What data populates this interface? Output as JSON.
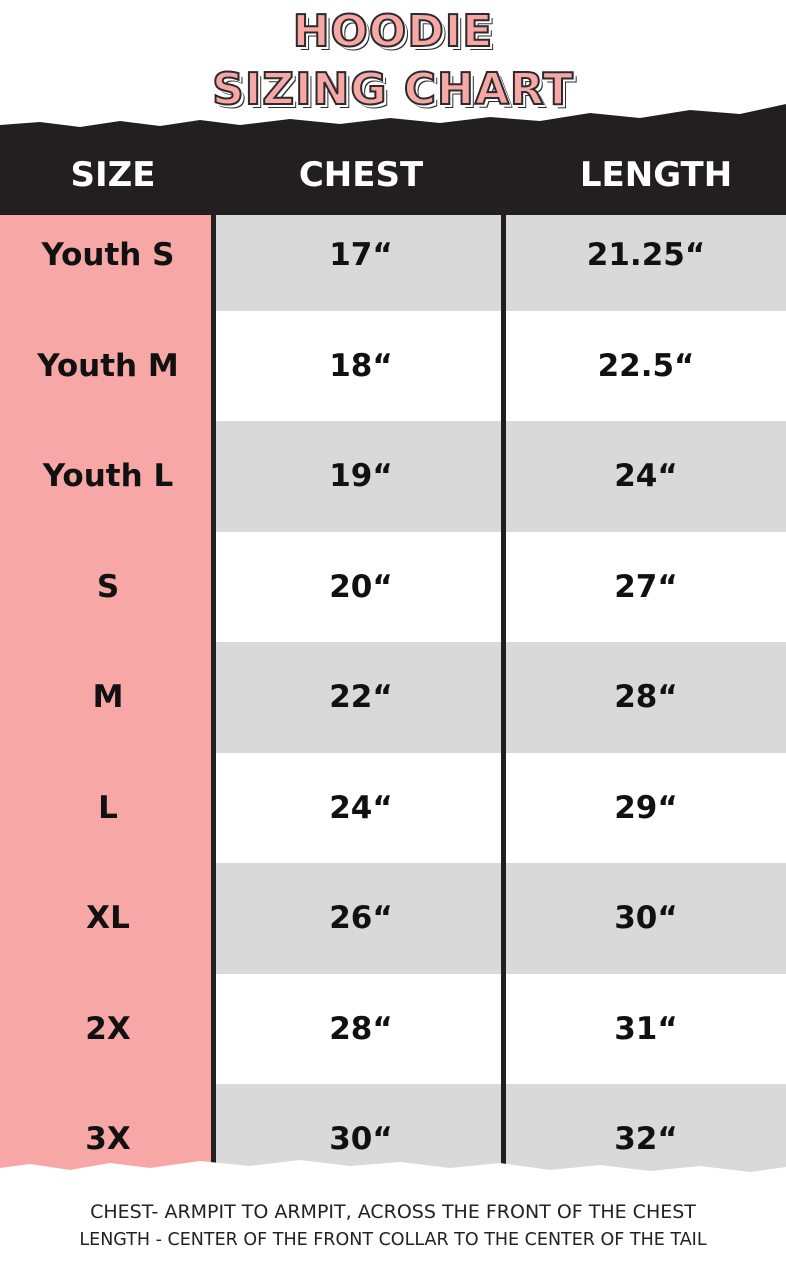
{
  "header": {
    "title": [
      "HOODIE",
      "SIZING CHART"
    ]
  },
  "table": {
    "columns": [
      "SIZE",
      "CHEST",
      "LENGTH"
    ],
    "rows": [
      [
        "Youth S",
        "17“",
        "21.25“"
      ],
      [
        "Youth M",
        "18“",
        "22.5“"
      ],
      [
        "Youth L",
        "19“",
        "24“"
      ],
      [
        "S",
        "20“",
        "27“"
      ],
      [
        "M",
        "22“",
        "28“"
      ],
      [
        "L",
        "24“",
        "29“"
      ],
      [
        "XL",
        "26“",
        "30“"
      ],
      [
        "2X",
        "28“",
        "31“"
      ],
      [
        "3X",
        "30“",
        "32“"
      ]
    ]
  },
  "notes": [
    "CHEST- ARMPIT TO ARMPIT, ACROSS THE FRONT OF THE CHEST",
    "LENGTH - CENTER OF THE FRONT COLLAR TO THE CENTER OF THE TAIL"
  ]
}
